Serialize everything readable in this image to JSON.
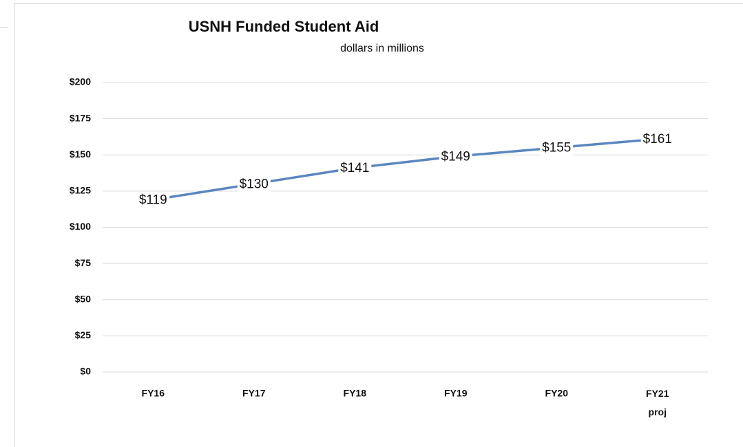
{
  "chart_data": {
    "type": "line",
    "title": "USNH Funded Student Aid",
    "subtitle": "dollars in millions",
    "categories": [
      "FY16",
      "FY17",
      "FY18",
      "FY19",
      "FY20",
      "FY21\nproj"
    ],
    "series": [
      {
        "name": "USNH Funded Student Aid",
        "color": "#5b87c0",
        "values": [
          119,
          130,
          141,
          149,
          155,
          161
        ],
        "value_labels": [
          "$119",
          "$130",
          "$141",
          "$149",
          "$155",
          "$161"
        ]
      }
    ],
    "ylim": [
      0,
      200
    ],
    "yticks": [
      {
        "value": 0,
        "label": "$0"
      },
      {
        "value": 25,
        "label": "$25"
      },
      {
        "value": 50,
        "label": "$50"
      },
      {
        "value": 75,
        "label": "$75"
      },
      {
        "value": 100,
        "label": "$100"
      },
      {
        "value": 125,
        "label": "$125"
      },
      {
        "value": 150,
        "label": "$150"
      },
      {
        "value": 175,
        "label": "$175"
      },
      {
        "value": 200,
        "label": "$200"
      }
    ],
    "grid": true
  }
}
